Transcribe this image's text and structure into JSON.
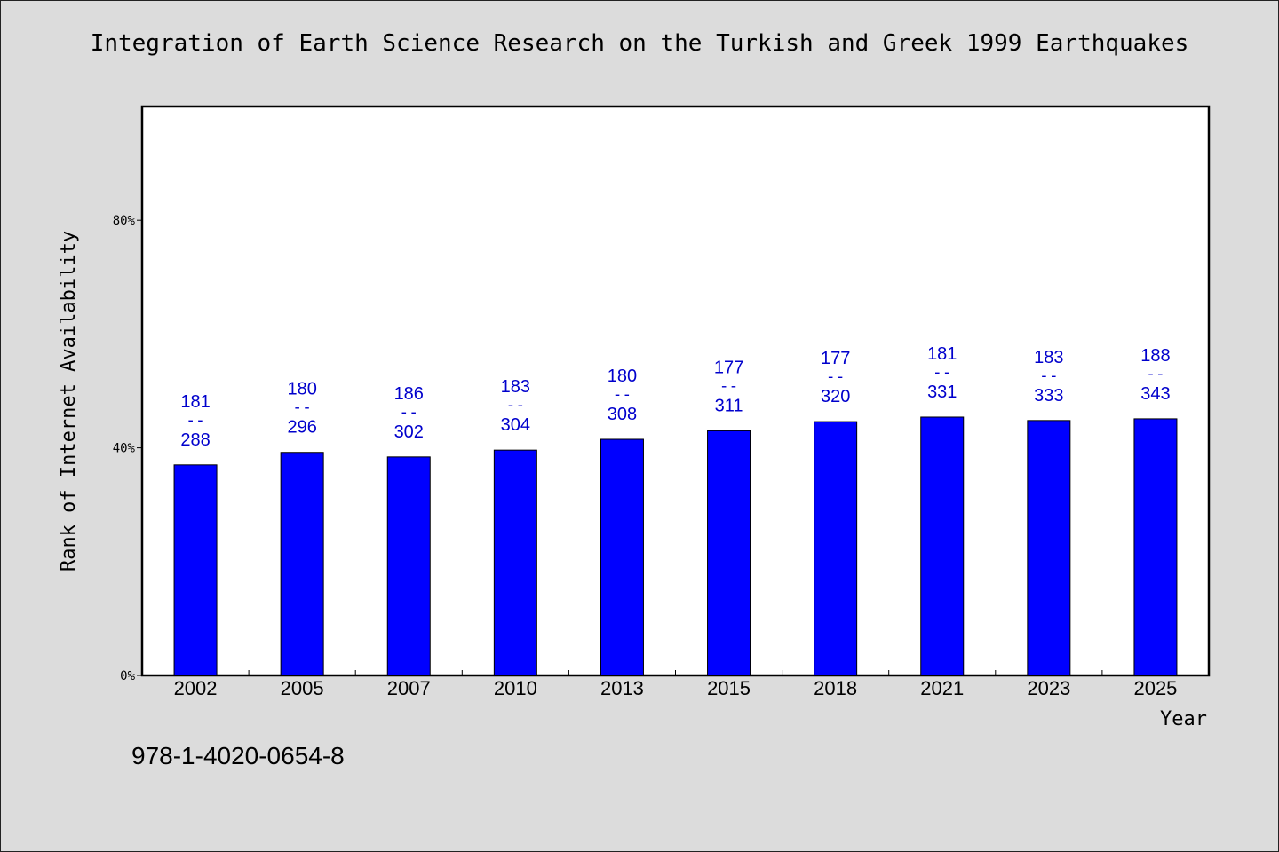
{
  "chart_data": {
    "type": "bar",
    "title": "Integration of Earth Science Research on the Turkish and Greek 1999 Earthquakes",
    "xlabel": "Year",
    "ylabel": "Rank of Internet Availability",
    "categories": [
      "2002",
      "2005",
      "2007",
      "2010",
      "2013",
      "2015",
      "2018",
      "2021",
      "2023",
      "2025"
    ],
    "values": [
      37,
      39.2,
      38.4,
      39.6,
      41.5,
      43,
      44.6,
      45.4,
      44.8,
      45.1
    ],
    "ylim": [
      0,
      100
    ],
    "yticks": [
      0,
      40,
      80
    ],
    "ytick_labels": [
      "0%",
      "40%",
      "80%"
    ],
    "bar_labels": [
      {
        "top": "181",
        "sep": "--",
        "bottom": "288"
      },
      {
        "top": "180",
        "sep": "--",
        "bottom": "296"
      },
      {
        "top": "186",
        "sep": "--",
        "bottom": "302"
      },
      {
        "top": "183",
        "sep": "--",
        "bottom": "304"
      },
      {
        "top": "180",
        "sep": "--",
        "bottom": "308"
      },
      {
        "top": "177",
        "sep": "--",
        "bottom": "311"
      },
      {
        "top": "177",
        "sep": "--",
        "bottom": "320"
      },
      {
        "top": "181",
        "sep": "--",
        "bottom": "331"
      },
      {
        "top": "183",
        "sep": "--",
        "bottom": "333"
      },
      {
        "top": "188",
        "sep": "--",
        "bottom": "343"
      }
    ],
    "grid": false,
    "legend": "none",
    "colors": {
      "bar": "#0000ff",
      "bar_label": "#0000cc",
      "plot_background": "#ffffff",
      "figure_background": "#dcdcdc"
    }
  },
  "footer": {
    "isbn": "978-1-4020-0654-8"
  }
}
